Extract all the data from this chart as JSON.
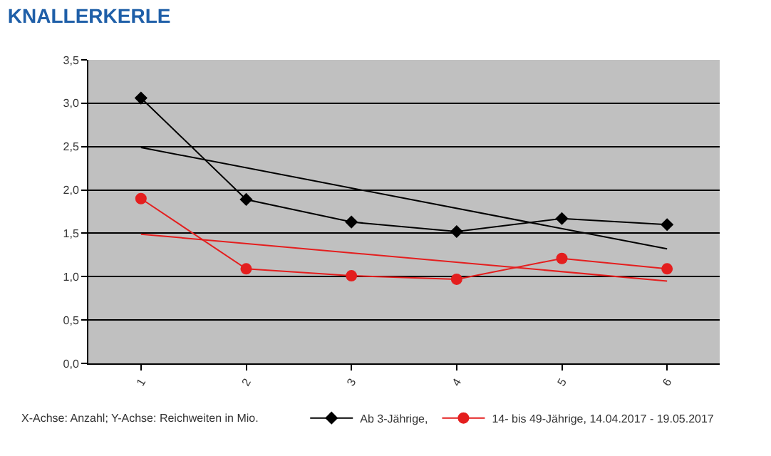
{
  "chart_data": {
    "type": "line",
    "title": "KNALLERKERLE",
    "x": [
      1,
      2,
      3,
      4,
      5,
      6
    ],
    "xlim": [
      0.5,
      6.5
    ],
    "xticks": [
      1,
      2,
      3,
      4,
      5,
      6
    ],
    "ylim": [
      0,
      3.5
    ],
    "yticks": [
      {
        "value": 0,
        "label": "0,0"
      },
      {
        "value": 0.5,
        "label": "0,5"
      },
      {
        "value": 1,
        "label": "1,0"
      },
      {
        "value": 1.5,
        "label": "1,5"
      },
      {
        "value": 2,
        "label": "2,0"
      },
      {
        "value": 2.5,
        "label": "2,5"
      },
      {
        "value": 3,
        "label": "3,0"
      },
      {
        "value": 3.5,
        "label": "3,5"
      }
    ],
    "grid": "y",
    "legend": "bottom",
    "series": [
      {
        "name": "Ab 3-Jährige,",
        "color": "#000000",
        "marker": "diamond",
        "values": [
          3.06,
          1.89,
          1.63,
          1.52,
          1.67,
          1.6
        ]
      },
      {
        "name": "14- bis 49-Jährige, 14.04.2017 - 19.05.2017",
        "color": "#e41e1e",
        "marker": "circle",
        "values": [
          1.9,
          1.09,
          1.01,
          0.97,
          1.21,
          1.09
        ]
      },
      {
        "color": "#000000",
        "marker": "none",
        "values": [
          2.49,
          null,
          null,
          null,
          null,
          1.32
        ]
      },
      {
        "color": "#e41e1e",
        "marker": "none",
        "values": [
          1.49,
          null,
          null,
          null,
          null,
          0.95
        ]
      }
    ],
    "annotations": [
      "X-Achse: Anzahl; Y-Achse: Reichweiten in Mio."
    ]
  }
}
